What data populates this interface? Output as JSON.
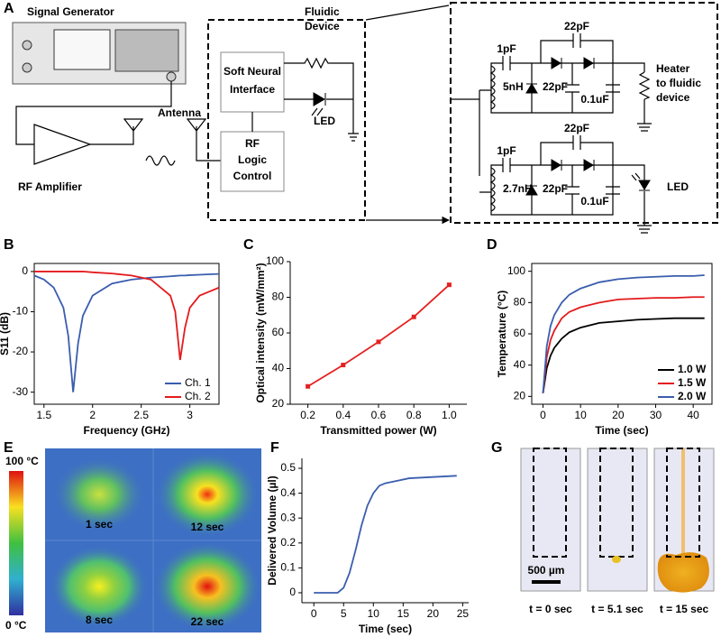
{
  "panel_labels": [
    "A",
    "B",
    "C",
    "D",
    "E",
    "F",
    "G"
  ],
  "diagram": {
    "signal_generator": "Signal Generator",
    "antenna": "Antenna",
    "rf_amplifier": "RF Amplifier",
    "fluidic_device": [
      "Fluidic",
      "Device"
    ],
    "soft_neural_interface": [
      "Soft Neural",
      "Interface"
    ],
    "led": "LED",
    "rf_logic_control": [
      "RF",
      "Logic",
      "Control"
    ],
    "circuit": {
      "top": {
        "c1": "1pF",
        "c2": "22pF",
        "inductor": "5nH",
        "c3": "22pF",
        "c4": "0.1uF",
        "load": [
          "Heater",
          "to fluidic",
          "device"
        ]
      },
      "bottom": {
        "c1": "1pF",
        "c2": "22pF",
        "inductor": "2.7nH",
        "c3": "22pF",
        "c4": "0.1uF",
        "load": [
          "LED"
        ]
      }
    }
  },
  "chart_data": [
    {
      "type": "line",
      "xlabel": "Frequency (GHz)",
      "ylabel": "S11 (dB)",
      "frame": true,
      "x": [
        1.4,
        1.5,
        1.6,
        1.7,
        1.75,
        1.8,
        1.85,
        1.9,
        2.0,
        2.2,
        2.4,
        2.6,
        2.8,
        2.85,
        2.9,
        2.95,
        3.0,
        3.1,
        3.2,
        3.3
      ],
      "series": [
        {
          "name": "Ch. 1",
          "color": "#3a5dae",
          "values": [
            -1,
            -2,
            -4,
            -9,
            -16,
            -30,
            -18,
            -11,
            -6,
            -3,
            -2,
            -1.5,
            -1.2,
            -1.1,
            -1,
            -1,
            -0.9,
            -0.8,
            -0.7,
            -0.6
          ]
        },
        {
          "name": "Ch. 2",
          "color": "#e41a1c",
          "values": [
            0,
            0,
            0,
            0,
            0,
            0,
            0,
            0,
            -0.2,
            -0.5,
            -1,
            -2,
            -6,
            -10,
            -22,
            -14,
            -9,
            -6,
            -5,
            -4
          ]
        }
      ],
      "xlim": [
        1.4,
        3.3
      ],
      "xticks": [
        1.5,
        2,
        2.5,
        3
      ],
      "ylim": [
        -33,
        2
      ],
      "yticks": [
        -30,
        -20,
        -10,
        0
      ],
      "legend": "lower right"
    },
    {
      "type": "line",
      "xlabel": "Transmitted power (W)",
      "ylabel": "Optical intensity (mW/mm²)",
      "frame": false,
      "markers": true,
      "x": [
        0.2,
        0.4,
        0.6,
        0.8,
        1.0
      ],
      "values": [
        30,
        42,
        55,
        69,
        87
      ],
      "color": "#e52020",
      "xlim": [
        0.1,
        1.1
      ],
      "xticks": [
        0.2,
        0.4,
        0.6,
        0.8,
        {
          "value": 1,
          "label": "1.0"
        }
      ],
      "ylim": [
        20,
        100
      ],
      "yticks": [
        20,
        40,
        60,
        80,
        100
      ]
    },
    {
      "type": "line",
      "xlabel": "Time (sec)",
      "ylabel": "Temperature (°C)",
      "frame": true,
      "x": [
        0,
        1,
        2,
        3,
        5,
        7,
        10,
        15,
        20,
        25,
        30,
        35,
        40,
        43
      ],
      "series": [
        {
          "name": "1.0 W",
          "color": "#000000",
          "values": [
            22,
            38,
            46,
            51,
            57,
            61,
            64,
            67,
            68,
            69,
            69.5,
            70,
            70,
            70
          ]
        },
        {
          "name": "1.5 W",
          "color": "#e41a1c",
          "values": [
            22,
            45,
            56,
            62,
            70,
            74,
            77,
            80,
            82,
            82.5,
            83,
            83,
            83.5,
            83.5
          ]
        },
        {
          "name": "2.0 W",
          "color": "#3a5dae",
          "values": [
            22,
            52,
            65,
            72,
            80,
            85,
            89,
            93,
            95,
            96,
            96.5,
            97,
            97,
            97.5
          ]
        }
      ],
      "xlim": [
        -3,
        45
      ],
      "xticks": [
        0,
        10,
        20,
        30,
        40
      ],
      "ylim": [
        15,
        105
      ],
      "yticks": [
        20,
        40,
        60,
        80,
        100
      ],
      "legend": "lower right"
    },
    {
      "type": "line",
      "xlabel": "Time (sec)",
      "ylabel": "Delivered Volume (µl)",
      "frame": false,
      "x": [
        0,
        4,
        5,
        6,
        7,
        8,
        9,
        10,
        11,
        12,
        14,
        16,
        20,
        24
      ],
      "values": [
        0,
        0,
        0.02,
        0.08,
        0.17,
        0.27,
        0.35,
        0.4,
        0.43,
        0.44,
        0.45,
        0.46,
        0.465,
        0.47
      ],
      "color": "#3a5dae",
      "xlim": [
        -2,
        26
      ],
      "xticks": [
        0,
        5,
        10,
        15,
        20,
        25
      ],
      "ylim": [
        -0.04,
        0.54
      ],
      "yticks": [
        0,
        0.1,
        0.2,
        0.3,
        0.4,
        0.5
      ]
    }
  ],
  "heatmap": {
    "scale_max": "100 °C",
    "scale_min": "0 °C",
    "times": [
      "1 sec",
      "12 sec",
      "8 sec",
      "22 sec"
    ]
  },
  "photos": {
    "scale_bar": "500 µm",
    "times": [
      "t = 0 sec",
      "t = 5.1 sec",
      "t = 15 sec"
    ]
  }
}
